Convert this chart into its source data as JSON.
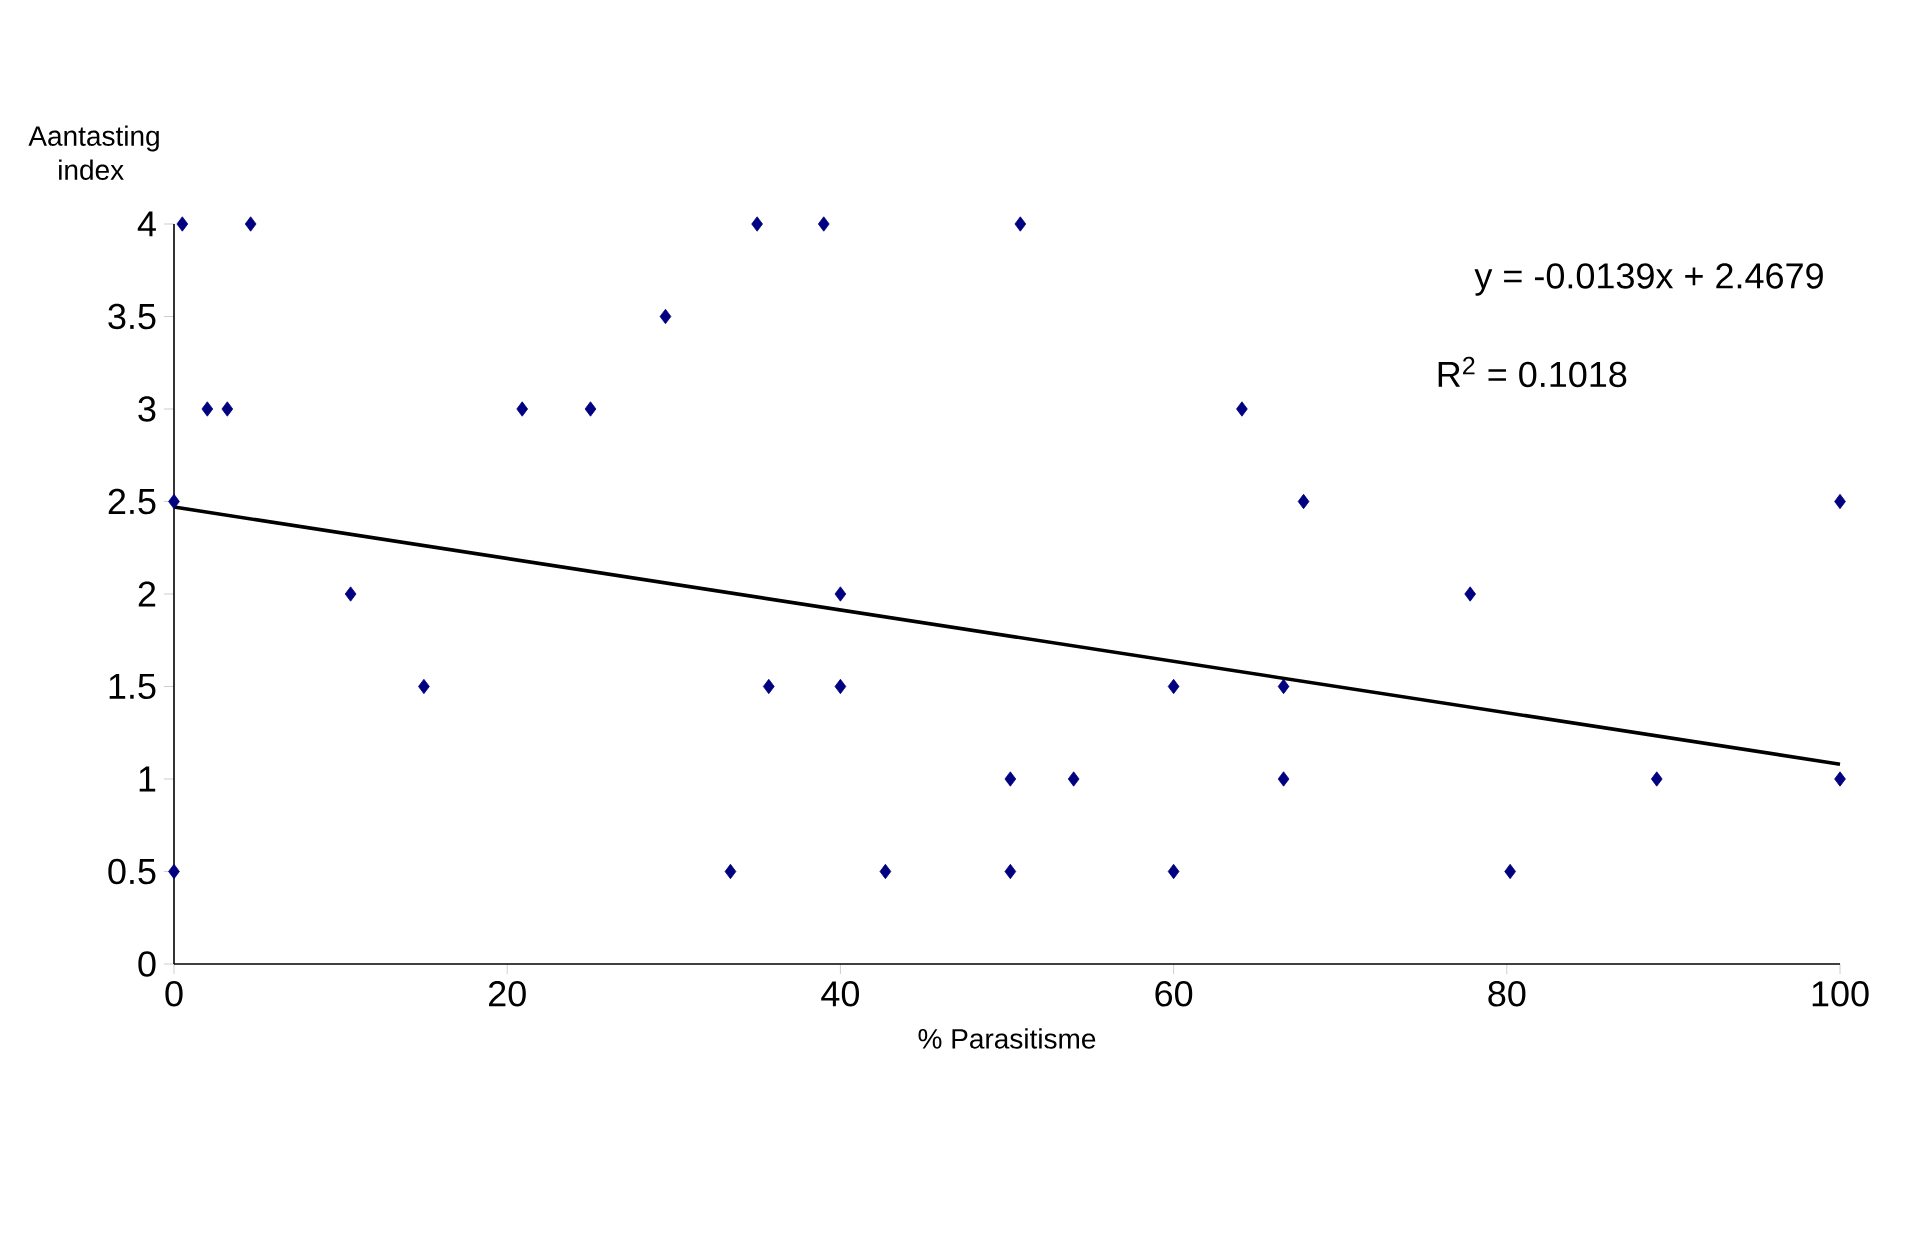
{
  "chart_data": {
    "type": "scatter",
    "xlabel": "% Parasitisme",
    "ylabel": "Aantasting index",
    "xlim": [
      0,
      100
    ],
    "xticks": [
      0,
      20,
      40,
      60,
      80,
      100
    ],
    "ylim": [
      0,
      4
    ],
    "yticks": [
      0,
      0.5,
      1,
      1.5,
      2,
      2.5,
      3,
      3.5,
      4
    ],
    "grid": false,
    "series": [
      {
        "marker": "diamond",
        "color": "#000080",
        "x": [
          0.5,
          2,
          3.2,
          4.6,
          0,
          0,
          10.6,
          15,
          20.9,
          25,
          29.5,
          33.4,
          35,
          35.7,
          39,
          40,
          40,
          42.7,
          50.2,
          50.2,
          50.8,
          54,
          60,
          60,
          64.1,
          66.6,
          66.6,
          67.8,
          77.8,
          80.2,
          89,
          100,
          100
        ],
        "values": [
          4,
          3,
          3,
          4,
          2.5,
          0.5,
          2,
          1.5,
          3,
          3,
          3.5,
          0.5,
          4,
          1.5,
          4,
          2,
          1.5,
          0.5,
          1,
          0.5,
          4,
          1,
          1.5,
          0.5,
          3,
          1.5,
          1,
          2.5,
          2,
          0.5,
          1,
          2.5,
          1
        ]
      },
      {
        "type": "line",
        "marker": "none",
        "color": "#000000",
        "x": [
          0,
          100
        ],
        "values": [
          2.47,
          1.08
        ]
      }
    ],
    "annotations": [
      "y = -0.0139x + 2.4679",
      "R$^{2}$ = 0.1018"
    ]
  }
}
